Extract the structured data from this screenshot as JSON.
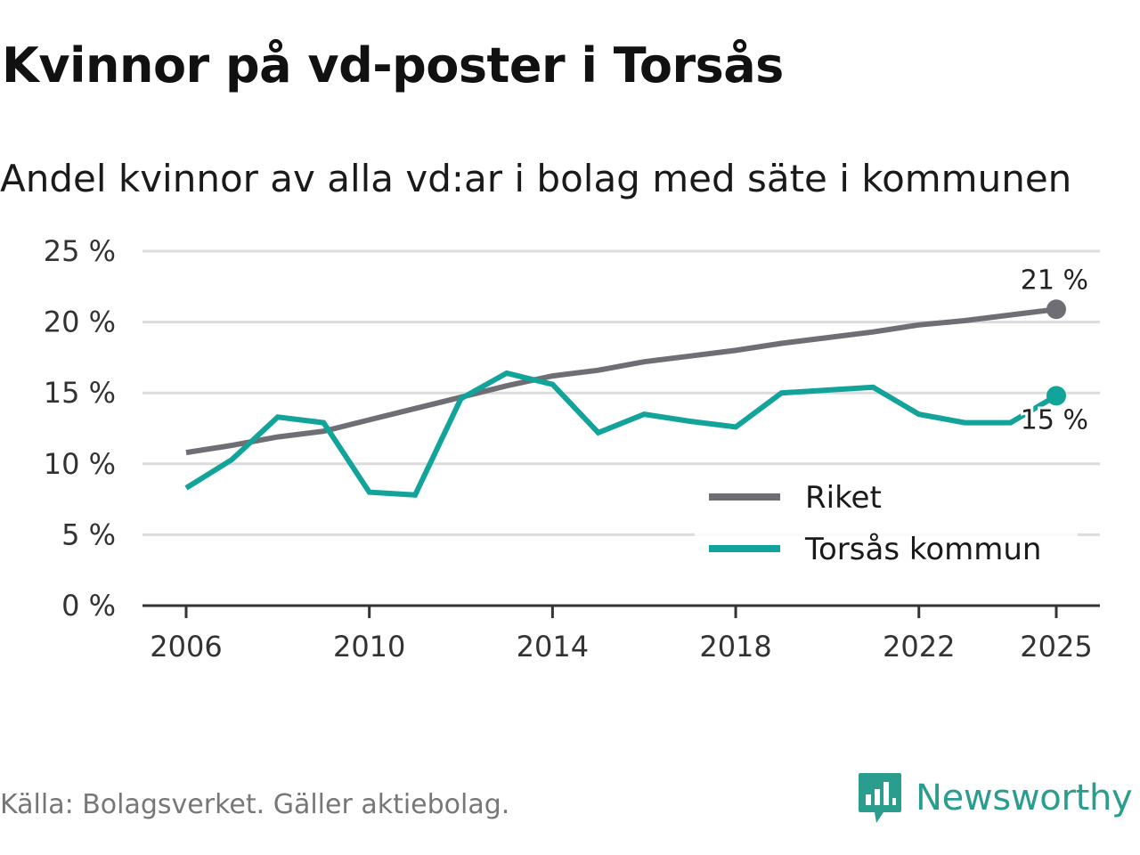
{
  "title": "Kvinnor på vd-poster i Torsås",
  "subtitle": "Andel kvinnor av alla vd:ar i bolag med säte i kommunen",
  "source": "Källa: Bolagsverket. Gäller aktiebolag.",
  "brand": {
    "name": "Newsworthy",
    "icon": "newsworthy-logo-icon",
    "color": "#2a9d8f"
  },
  "colors": {
    "riket": "#6e6e74",
    "torsas": "#12a39a",
    "grid": "#dcdcdc",
    "axis": "#333333"
  },
  "chart_data": {
    "type": "line",
    "title": "Kvinnor på vd-poster i Torsås",
    "subtitle": "Andel kvinnor av alla vd:ar i bolag med säte i kommunen",
    "xlabel": "",
    "ylabel": "",
    "x": [
      2006,
      2007,
      2008,
      2009,
      2010,
      2011,
      2012,
      2013,
      2014,
      2015,
      2016,
      2017,
      2018,
      2019,
      2020,
      2021,
      2022,
      2023,
      2024,
      2025
    ],
    "xlim": [
      2006,
      2025
    ],
    "x_ticks": [
      2006,
      2010,
      2014,
      2018,
      2022,
      2025
    ],
    "x_tick_labels": [
      "2006",
      "2010",
      "2014",
      "2018",
      "2022",
      "2025"
    ],
    "ylim": [
      0,
      25
    ],
    "y_ticks": [
      0,
      5,
      10,
      15,
      20,
      25
    ],
    "y_tick_labels": [
      "0 %",
      "5 %",
      "10 %",
      "15 %",
      "20 %",
      "25 %"
    ],
    "grid": true,
    "legend_position": "bottom-right",
    "series": [
      {
        "name": "Riket",
        "key": "riket",
        "values": [
          10.8,
          11.3,
          11.9,
          12.3,
          13.1,
          13.9,
          14.7,
          15.5,
          16.2,
          16.6,
          17.2,
          17.6,
          18.0,
          18.5,
          18.9,
          19.3,
          19.8,
          20.1,
          20.5,
          20.9
        ],
        "end_label": "21 %"
      },
      {
        "name": "Torsås kommun",
        "key": "torsas",
        "values": [
          8.3,
          10.3,
          13.3,
          12.9,
          8.0,
          7.8,
          14.6,
          16.4,
          15.6,
          12.2,
          13.5,
          13.0,
          12.6,
          15.0,
          15.2,
          15.4,
          13.5,
          12.9,
          12.9,
          14.8
        ],
        "end_label": "15 %"
      }
    ]
  }
}
